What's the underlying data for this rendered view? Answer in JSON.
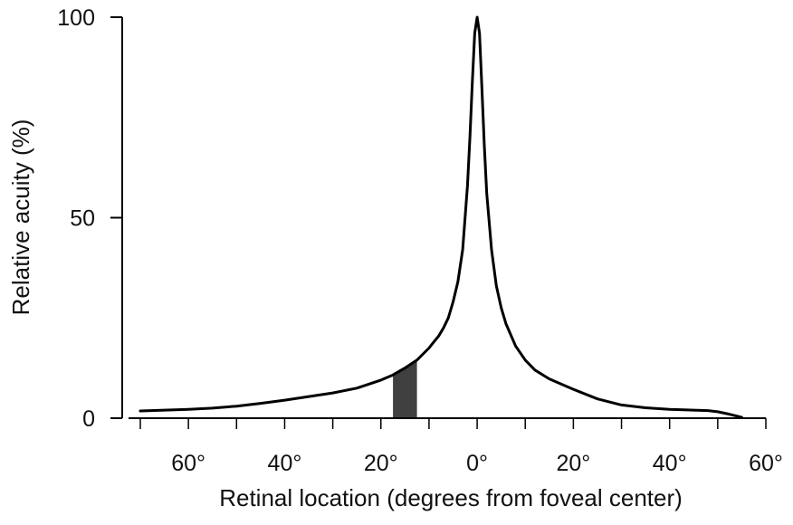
{
  "chart_data": {
    "type": "area",
    "title": "",
    "xlabel": "Retinal location (degrees from foveal center)",
    "ylabel": "Relative acuity (%)",
    "xlim": [
      -70,
      60
    ],
    "ylim": [
      0,
      100
    ],
    "x_tick_values": [
      -60,
      -40,
      -20,
      0,
      20,
      40,
      60
    ],
    "x_tick_labels": [
      "60°",
      "40°",
      "20°",
      "0°",
      "20°",
      "40°",
      "60°"
    ],
    "x_minor_ticks": [
      -70,
      -60,
      -50,
      -40,
      -30,
      -20,
      -10,
      0,
      10,
      20,
      30,
      40,
      50,
      60
    ],
    "y_tick_values": [
      0,
      50,
      100
    ],
    "y_tick_labels": [
      "0",
      "50",
      "100"
    ],
    "grid": false,
    "series": [
      {
        "x": [
          -70,
          -60,
          -55,
          -50,
          -45,
          -40,
          -35,
          -30,
          -25,
          -20,
          -17.5,
          -15,
          -12.5,
          -10,
          -9,
          -8,
          -7,
          -6,
          -5,
          -4,
          -3,
          -2,
          -1.5,
          -1,
          -0.5,
          0,
          0.5,
          1,
          1.5,
          2,
          3,
          4,
          5,
          6,
          8,
          10,
          12,
          15,
          20,
          25,
          30,
          35,
          40,
          45,
          48,
          50,
          52,
          55
        ],
        "y": [
          1.8,
          2.2,
          2.5,
          3.0,
          3.7,
          4.5,
          5.4,
          6.3,
          7.5,
          9.5,
          10.8,
          12.5,
          14.5,
          17.5,
          19,
          20.5,
          22.5,
          25,
          29,
          34,
          42,
          58,
          70,
          84,
          96,
          100,
          96,
          82,
          68,
          56,
          42,
          33,
          27.5,
          23.5,
          18,
          14.5,
          12,
          9.8,
          7.2,
          4.8,
          3.3,
          2.6,
          2.2,
          2.0,
          1.9,
          1.6,
          1.1,
          0.2
        ],
        "color": "#000000"
      }
    ],
    "highlight": {
      "x_range": [
        -17.5,
        -12.5
      ],
      "color": "#404040"
    }
  }
}
